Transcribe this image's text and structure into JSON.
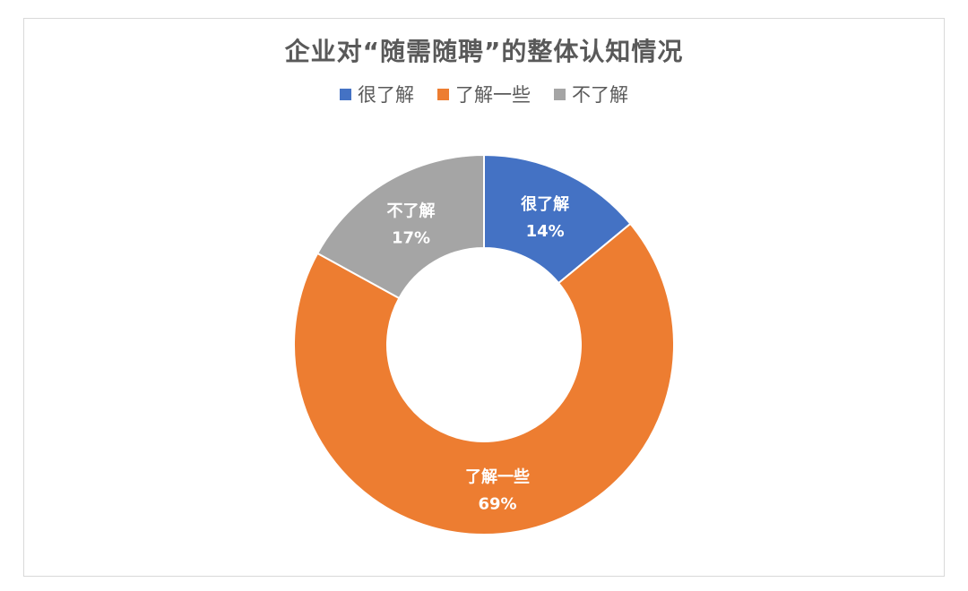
{
  "chart_data": {
    "type": "pie",
    "title": "企业对“随需随聘”的整体认知情况",
    "legend_position": "top",
    "hole": true,
    "categories": [
      "很了解",
      "了解一些",
      "不了解"
    ],
    "values": [
      14,
      69,
      17
    ],
    "value_labels": [
      "14%",
      "69%",
      "17%"
    ],
    "colors": [
      "#4472c4",
      "#ed7d31",
      "#a5a5a5"
    ]
  }
}
